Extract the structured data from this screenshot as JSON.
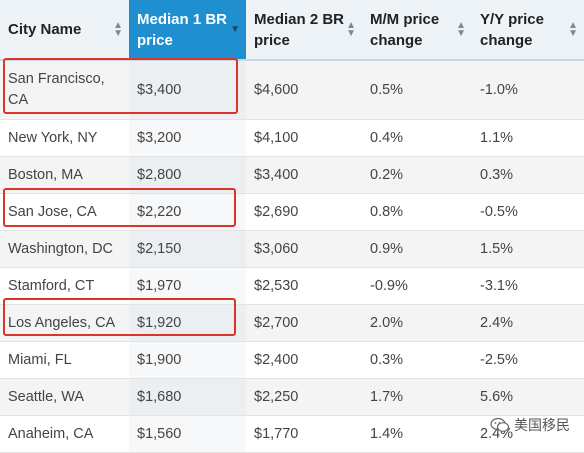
{
  "table": {
    "columns": [
      {
        "label": "City Name",
        "sorted": false
      },
      {
        "label": "Median 1 BR price",
        "sorted": true
      },
      {
        "label": "Median 2 BR price",
        "sorted": false
      },
      {
        "label": "M/M price change",
        "sorted": false
      },
      {
        "label": "Y/Y price change",
        "sorted": false
      }
    ],
    "rows": [
      [
        "San Francisco, CA",
        "$3,400",
        "$4,600",
        "0.5%",
        "-1.0%"
      ],
      [
        "New York, NY",
        "$3,200",
        "$4,100",
        "0.4%",
        "1.1%"
      ],
      [
        "Boston, MA",
        "$2,800",
        "$3,400",
        "0.2%",
        "0.3%"
      ],
      [
        "San Jose, CA",
        "$2,220",
        "$2,690",
        "0.8%",
        "-0.5%"
      ],
      [
        "Washington, DC",
        "$2,150",
        "$3,060",
        "0.9%",
        "1.5%"
      ],
      [
        "Stamford, CT",
        "$1,970",
        "$2,530",
        "-0.9%",
        "-3.1%"
      ],
      [
        "Los Angeles, CA",
        "$1,920",
        "$2,700",
        "2.0%",
        "2.4%"
      ],
      [
        "Miami, FL",
        "$1,900",
        "$2,400",
        "0.3%",
        "-2.5%"
      ],
      [
        "Seattle, WA",
        "$1,680",
        "$2,250",
        "1.7%",
        "5.6%"
      ],
      [
        "Anaheim, CA",
        "$1,560",
        "$1,770",
        "1.4%",
        "2.4%"
      ]
    ],
    "highlighted_rows": [
      "San Francisco, CA",
      "San Jose, CA",
      "Los Angeles, CA"
    ],
    "header_accent": "#1f8fd0",
    "highlight_color": "#d9352b"
  },
  "watermark": {
    "text": "美国移民",
    "icon": "wechat-icon"
  }
}
